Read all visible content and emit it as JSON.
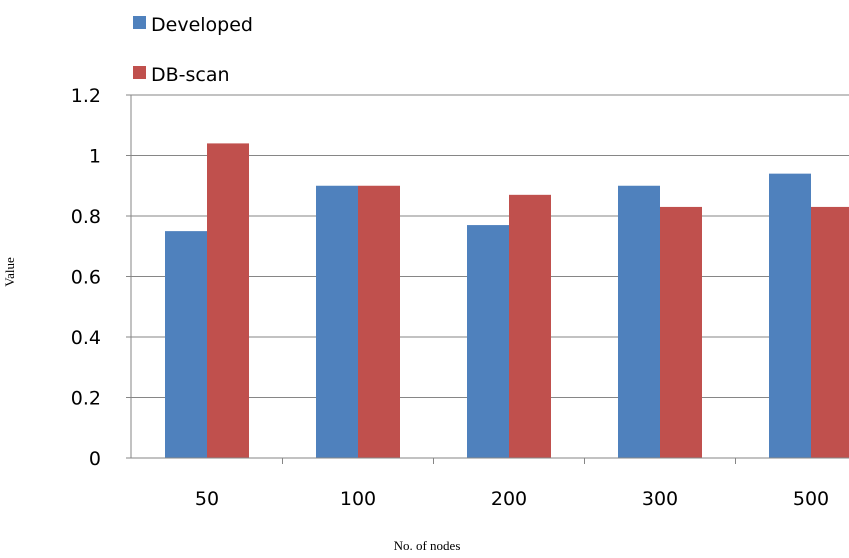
{
  "chart_data": {
    "type": "bar",
    "categories": [
      "50",
      "100",
      "200",
      "300",
      "500"
    ],
    "series": [
      {
        "name": "Developed",
        "color": "#4F81BD",
        "values": [
          0.75,
          0.9,
          0.77,
          0.9,
          0.94
        ]
      },
      {
        "name": "DB-scan",
        "color": "#C0504D",
        "values": [
          1.04,
          0.9,
          0.87,
          0.83,
          0.83
        ]
      }
    ],
    "ylim": [
      0,
      1.2
    ],
    "yticks": [
      "0",
      "0.2",
      "0.4",
      "0.6",
      "0.8",
      "1",
      "1.2"
    ],
    "xlabel": "No. of nodes",
    "ylabel": "Value",
    "grid": true,
    "legend_position": "top-left"
  }
}
